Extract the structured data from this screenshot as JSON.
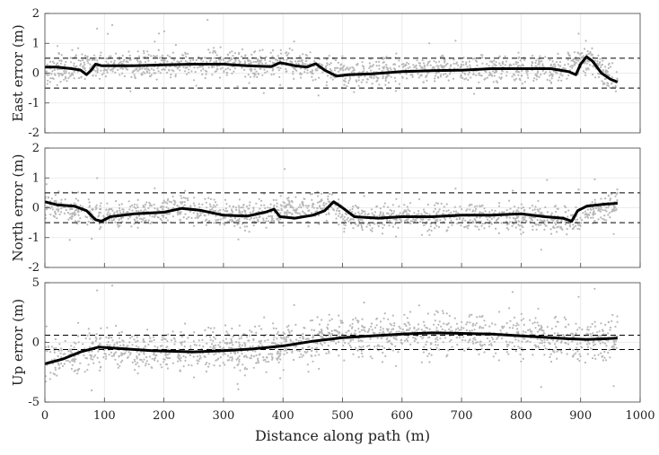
{
  "chart_data": [
    {
      "type": "scatter",
      "ylabel": "East error (m)",
      "xlim": [
        0,
        1000
      ],
      "ylim": [
        -2,
        2
      ],
      "yticks": [
        -2,
        -1,
        0,
        1,
        2
      ],
      "grid": true,
      "raw_scatter": {
        "color": "#b8b8b8",
        "x_range": [
          0,
          962
        ],
        "base": [
          [
            0,
            0.1
          ],
          [
            120,
            0.3
          ],
          [
            300,
            0.3
          ],
          [
            400,
            0.3
          ],
          [
            450,
            0.2
          ],
          [
            500,
            0.0
          ],
          [
            700,
            0.15
          ],
          [
            850,
            0.15
          ],
          [
            910,
            0.5
          ],
          [
            962,
            -0.3
          ]
        ],
        "spread": 0.4
      },
      "smoothed": {
        "color": "#000000",
        "points": [
          [
            0,
            0.2
          ],
          [
            20,
            0.2
          ],
          [
            45,
            0.15
          ],
          [
            60,
            0.1
          ],
          [
            70,
            -0.05
          ],
          [
            78,
            0.1
          ],
          [
            85,
            0.3
          ],
          [
            95,
            0.25
          ],
          [
            150,
            0.25
          ],
          [
            200,
            0.28
          ],
          [
            250,
            0.3
          ],
          [
            300,
            0.3
          ],
          [
            340,
            0.25
          ],
          [
            380,
            0.22
          ],
          [
            395,
            0.35
          ],
          [
            420,
            0.25
          ],
          [
            440,
            0.2
          ],
          [
            455,
            0.32
          ],
          [
            470,
            0.1
          ],
          [
            490,
            -0.1
          ],
          [
            510,
            -0.05
          ],
          [
            550,
            -0.02
          ],
          [
            600,
            0.05
          ],
          [
            650,
            0.08
          ],
          [
            700,
            0.1
          ],
          [
            750,
            0.15
          ],
          [
            800,
            0.15
          ],
          [
            850,
            0.15
          ],
          [
            880,
            0.05
          ],
          [
            892,
            -0.05
          ],
          [
            900,
            0.3
          ],
          [
            910,
            0.55
          ],
          [
            920,
            0.4
          ],
          [
            935,
            0.0
          ],
          [
            950,
            -0.2
          ],
          [
            962,
            -0.3
          ]
        ]
      },
      "bounds": [
        0.5,
        -0.5
      ]
    },
    {
      "type": "scatter",
      "ylabel": "North error (m)",
      "xlim": [
        0,
        1000
      ],
      "ylim": [
        -2,
        2
      ],
      "yticks": [
        -2,
        -1,
        0,
        1,
        2
      ],
      "grid": true,
      "raw_scatter": {
        "color": "#b8b8b8",
        "x_range": [
          0,
          962
        ],
        "base": [
          [
            0,
            0.1
          ],
          [
            100,
            -0.3
          ],
          [
            230,
            0.0
          ],
          [
            300,
            -0.25
          ],
          [
            385,
            -0.1
          ],
          [
            480,
            0.1
          ],
          [
            500,
            -0.3
          ],
          [
            700,
            -0.3
          ],
          [
            880,
            -0.4
          ],
          [
            962,
            0.15
          ]
        ],
        "spread": 0.4
      },
      "smoothed": {
        "color": "#000000",
        "points": [
          [
            0,
            0.2
          ],
          [
            20,
            0.1
          ],
          [
            50,
            0.05
          ],
          [
            70,
            -0.1
          ],
          [
            85,
            -0.4
          ],
          [
            95,
            -0.45
          ],
          [
            110,
            -0.3
          ],
          [
            150,
            -0.2
          ],
          [
            200,
            -0.15
          ],
          [
            230,
            -0.02
          ],
          [
            260,
            -0.08
          ],
          [
            300,
            -0.25
          ],
          [
            340,
            -0.28
          ],
          [
            370,
            -0.15
          ],
          [
            385,
            -0.05
          ],
          [
            395,
            -0.3
          ],
          [
            420,
            -0.35
          ],
          [
            450,
            -0.25
          ],
          [
            470,
            -0.1
          ],
          [
            485,
            0.2
          ],
          [
            500,
            0.0
          ],
          [
            520,
            -0.3
          ],
          [
            560,
            -0.35
          ],
          [
            600,
            -0.3
          ],
          [
            650,
            -0.3
          ],
          [
            700,
            -0.25
          ],
          [
            750,
            -0.25
          ],
          [
            800,
            -0.2
          ],
          [
            840,
            -0.3
          ],
          [
            870,
            -0.35
          ],
          [
            885,
            -0.45
          ],
          [
            895,
            -0.1
          ],
          [
            910,
            0.05
          ],
          [
            940,
            0.12
          ],
          [
            962,
            0.15
          ]
        ]
      },
      "bounds": [
        0.5,
        -0.5
      ]
    },
    {
      "type": "scatter",
      "ylabel": "Up error (m)",
      "xlabel": "Distance along path (m)",
      "xlim": [
        0,
        1000
      ],
      "xticks": [
        0,
        100,
        200,
        300,
        400,
        500,
        600,
        700,
        800,
        900,
        1000
      ],
      "ylim": [
        -5,
        5
      ],
      "yticks": [
        -5,
        0,
        5
      ],
      "grid": true,
      "raw_scatter": {
        "color": "#b8b8b8",
        "x_range": [
          0,
          962
        ],
        "base": [
          [
            0,
            -1.5
          ],
          [
            100,
            -0.5
          ],
          [
            250,
            -0.8
          ],
          [
            400,
            -0.2
          ],
          [
            500,
            0.5
          ],
          [
            650,
            0.8
          ],
          [
            800,
            0.5
          ],
          [
            900,
            0.2
          ],
          [
            962,
            0.3
          ]
        ],
        "spread": 1.6
      },
      "smoothed": {
        "color": "#000000",
        "points": [
          [
            0,
            -1.8
          ],
          [
            30,
            -1.4
          ],
          [
            60,
            -0.8
          ],
          [
            90,
            -0.4
          ],
          [
            120,
            -0.5
          ],
          [
            180,
            -0.7
          ],
          [
            250,
            -0.8
          ],
          [
            300,
            -0.7
          ],
          [
            350,
            -0.55
          ],
          [
            400,
            -0.3
          ],
          [
            450,
            0.1
          ],
          [
            500,
            0.4
          ],
          [
            550,
            0.55
          ],
          [
            600,
            0.7
          ],
          [
            650,
            0.8
          ],
          [
            700,
            0.75
          ],
          [
            750,
            0.7
          ],
          [
            800,
            0.55
          ],
          [
            850,
            0.4
          ],
          [
            880,
            0.3
          ],
          [
            910,
            0.25
          ],
          [
            940,
            0.3
          ],
          [
            962,
            0.35
          ]
        ]
      },
      "bounds": [
        0.6,
        -0.6
      ]
    }
  ]
}
